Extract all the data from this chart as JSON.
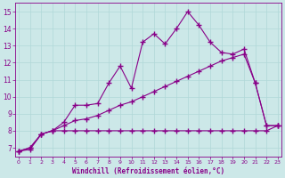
{
  "xlabel": "Windchill (Refroidissement éolien,°C)",
  "bg_color": "#cce8e8",
  "line_color": "#880088",
  "x_all": [
    0,
    1,
    2,
    3,
    4,
    5,
    6,
    7,
    8,
    9,
    10,
    11,
    12,
    13,
    14,
    15,
    16,
    17,
    18,
    19,
    20,
    21,
    22,
    23
  ],
  "y_temp": [
    6.8,
    7.0,
    7.8,
    8.0,
    8.5,
    9.5,
    9.5,
    9.6,
    10.8,
    11.8,
    10.5,
    13.2,
    13.7,
    13.1,
    14.0,
    15.0,
    14.2,
    13.2,
    12.6,
    12.5,
    12.8,
    10.8,
    8.3,
    8.3
  ],
  "y_wc": [
    6.8,
    6.9,
    7.8,
    8.0,
    8.0,
    8.0,
    8.0,
    8.0,
    8.0,
    8.0,
    8.0,
    8.0,
    8.0,
    8.0,
    8.0,
    8.0,
    8.0,
    8.0,
    8.0,
    8.0,
    8.0,
    8.0,
    8.0,
    8.3
  ],
  "y_mid": [
    6.8,
    7.0,
    7.8,
    8.0,
    8.3,
    8.6,
    8.7,
    8.9,
    9.2,
    9.5,
    9.7,
    10.0,
    10.3,
    10.6,
    10.9,
    11.2,
    11.5,
    11.8,
    12.1,
    12.3,
    12.5,
    10.8,
    8.3,
    8.3
  ],
  "xlim": [
    -0.3,
    23.3
  ],
  "ylim": [
    6.5,
    15.5
  ],
  "yticks": [
    7,
    8,
    9,
    10,
    11,
    12,
    13,
    14,
    15
  ],
  "xticks": [
    0,
    1,
    2,
    3,
    4,
    5,
    6,
    7,
    8,
    9,
    10,
    11,
    12,
    13,
    14,
    15,
    16,
    17,
    18,
    19,
    20,
    21,
    22,
    23
  ],
  "grid_color": "#b0d8d8",
  "spine_color": "#880088"
}
